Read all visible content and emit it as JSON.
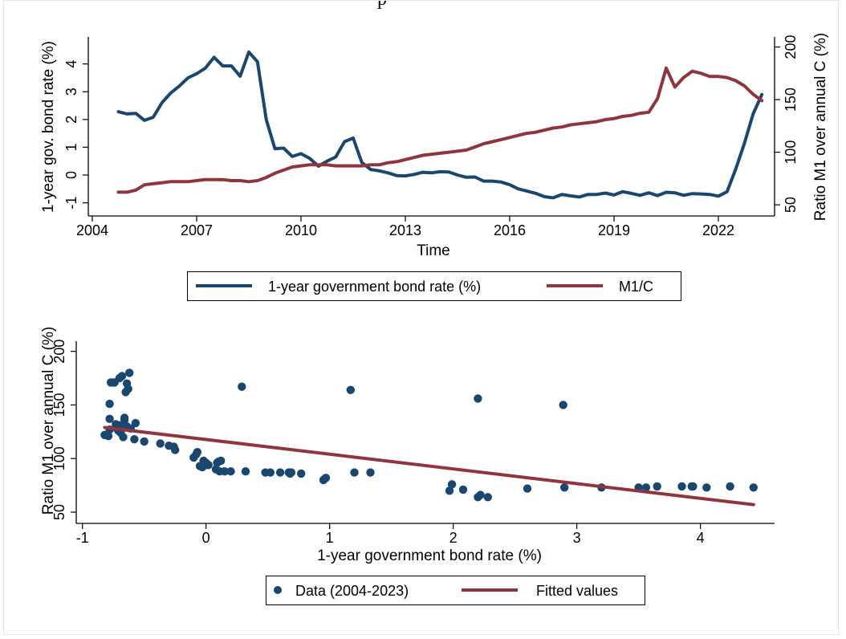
{
  "colors": {
    "bond": "#1a476f",
    "m1c": "#90353b",
    "axis": "#000000",
    "frame": "#e6e6e6"
  },
  "chart_data": [
    {
      "type": "line",
      "xlabel": "Time",
      "ylabel_left": "1-year gov. bond rate (%)",
      "ylabel_right": "Ratio M1 over annual C (%)",
      "x_ticks": [
        "2004",
        "2007",
        "2010",
        "2013",
        "2016",
        "2019",
        "2022"
      ],
      "y_left_ticks": [
        "-1",
        "0",
        "1",
        "2",
        "3",
        "4"
      ],
      "y_right_ticks": [
        "50",
        "100",
        "150",
        "200"
      ],
      "x_range": [
        2004,
        2023.5
      ],
      "y_left_range": [
        -1.3,
        4.8
      ],
      "y_right_range": [
        44,
        205
      ],
      "legend_position": "bottom",
      "legend": [
        "1-year government bond rate (%)",
        "M1/C"
      ],
      "series": [
        {
          "name": "1-year government bond rate (%)",
          "axis": "left",
          "x": [
            2004.75,
            2005.0,
            2005.25,
            2005.5,
            2005.75,
            2006.0,
            2006.25,
            2006.5,
            2006.75,
            2007.0,
            2007.25,
            2007.5,
            2007.75,
            2008.0,
            2008.25,
            2008.5,
            2008.75,
            2009.0,
            2009.25,
            2009.5,
            2009.75,
            2010.0,
            2010.25,
            2010.5,
            2010.75,
            2011.0,
            2011.25,
            2011.5,
            2011.75,
            2012.0,
            2012.25,
            2012.5,
            2012.75,
            2013.0,
            2013.25,
            2013.5,
            2013.75,
            2014.0,
            2014.25,
            2014.5,
            2014.75,
            2015.0,
            2015.25,
            2015.5,
            2015.75,
            2016.0,
            2016.25,
            2016.5,
            2016.75,
            2017.0,
            2017.25,
            2017.5,
            2017.75,
            2018.0,
            2018.25,
            2018.5,
            2018.75,
            2019.0,
            2019.25,
            2019.5,
            2019.75,
            2020.0,
            2020.25,
            2020.5,
            2020.75,
            2021.0,
            2021.25,
            2021.5,
            2021.75,
            2022.0,
            2022.25,
            2022.5,
            2022.75,
            2023.0,
            2023.25
          ],
          "values": [
            2.28,
            2.2,
            2.22,
            1.97,
            2.08,
            2.6,
            2.95,
            3.2,
            3.5,
            3.65,
            3.85,
            4.24,
            3.93,
            3.93,
            3.56,
            4.43,
            4.08,
            2.0,
            0.95,
            0.97,
            0.67,
            0.77,
            0.6,
            0.32,
            0.5,
            0.65,
            1.2,
            1.33,
            0.45,
            0.2,
            0.15,
            0.08,
            -0.02,
            -0.03,
            0.02,
            0.1,
            0.08,
            0.12,
            0.11,
            0.0,
            -0.08,
            -0.07,
            -0.22,
            -0.22,
            -0.25,
            -0.35,
            -0.5,
            -0.58,
            -0.66,
            -0.78,
            -0.82,
            -0.7,
            -0.75,
            -0.79,
            -0.7,
            -0.7,
            -0.65,
            -0.72,
            -0.6,
            -0.66,
            -0.73,
            -0.64,
            -0.74,
            -0.62,
            -0.64,
            -0.73,
            -0.67,
            -0.68,
            -0.7,
            -0.76,
            -0.6,
            0.22,
            1.15,
            2.2,
            2.9
          ]
        },
        {
          "name": "M1/C",
          "axis": "right",
          "x": [
            2004.75,
            2005.0,
            2005.25,
            2005.5,
            2005.75,
            2006.0,
            2006.25,
            2006.5,
            2006.75,
            2007.0,
            2007.25,
            2007.5,
            2007.75,
            2008.0,
            2008.25,
            2008.5,
            2008.75,
            2009.0,
            2009.25,
            2009.5,
            2009.75,
            2010.0,
            2010.25,
            2010.5,
            2010.75,
            2011.0,
            2011.25,
            2011.5,
            2011.75,
            2012.0,
            2012.25,
            2012.5,
            2012.75,
            2013.0,
            2013.25,
            2013.5,
            2013.75,
            2014.0,
            2014.25,
            2014.5,
            2014.75,
            2015.0,
            2015.25,
            2015.5,
            2015.75,
            2016.0,
            2016.25,
            2016.5,
            2016.75,
            2017.0,
            2017.25,
            2017.5,
            2017.75,
            2018.0,
            2018.25,
            2018.5,
            2018.75,
            2019.0,
            2019.25,
            2019.5,
            2019.75,
            2020.0,
            2020.25,
            2020.5,
            2020.75,
            2021.0,
            2021.25,
            2021.5,
            2021.75,
            2022.0,
            2022.25,
            2022.5,
            2022.75,
            2023.0,
            2023.25
          ],
          "values": [
            62,
            62,
            64,
            69,
            70,
            71,
            72,
            72,
            72,
            73,
            74,
            74,
            74,
            73,
            73,
            72,
            73,
            76,
            80,
            83,
            86,
            87,
            88,
            88,
            88,
            87,
            87,
            87,
            87,
            88,
            88,
            90,
            91,
            93,
            95,
            97,
            98,
            99,
            100,
            101,
            102,
            105,
            108,
            110,
            112,
            114,
            116,
            118,
            119,
            121,
            123,
            124,
            126,
            127,
            128,
            129,
            131,
            132,
            134,
            135,
            137,
            138,
            151,
            180,
            162,
            171,
            177,
            175,
            172,
            172,
            171,
            168,
            163,
            155,
            149
          ]
        }
      ]
    },
    {
      "type": "scatter",
      "xlabel": "1-year government bond rate (%)",
      "ylabel": "Ratio M1 over annual C (%)",
      "x_ticks": [
        "-1",
        "0",
        "1",
        "2",
        "3",
        "4"
      ],
      "y_ticks": [
        "50",
        "100",
        "150",
        "200"
      ],
      "x_range": [
        -1.05,
        4.6
      ],
      "y_range": [
        44,
        205
      ],
      "legend_position": "bottom",
      "legend": [
        "Data (2004-2023)",
        "Fitted values"
      ],
      "series": [
        {
          "name": "Data (2004-2023)",
          "points": [
            [
              -0.82,
              122
            ],
            [
              -0.8,
              122
            ],
            [
              -0.79,
              121
            ],
            [
              -0.78,
              127
            ],
            [
              -0.78,
              137
            ],
            [
              -0.78,
              151
            ],
            [
              -0.77,
              171
            ],
            [
              -0.75,
              171
            ],
            [
              -0.74,
              171
            ],
            [
              -0.73,
              132
            ],
            [
              -0.72,
              128
            ],
            [
              -0.71,
              126
            ],
            [
              -0.7,
              131
            ],
            [
              -0.7,
              175
            ],
            [
              -0.69,
              124
            ],
            [
              -0.68,
              177
            ],
            [
              -0.67,
              120
            ],
            [
              -0.66,
              138
            ],
            [
              -0.66,
              136
            ],
            [
              -0.65,
              162
            ],
            [
              -0.64,
              130
            ],
            [
              -0.64,
              170
            ],
            [
              -0.63,
              165
            ],
            [
              -0.62,
              180
            ],
            [
              -0.61,
              128
            ],
            [
              -0.58,
              118
            ],
            [
              -0.57,
              133
            ],
            [
              -0.5,
              116
            ],
            [
              -0.37,
              114
            ],
            [
              -0.3,
              112
            ],
            [
              -0.26,
              111
            ],
            [
              -0.25,
              108
            ],
            [
              -0.1,
              101
            ],
            [
              -0.08,
              104
            ],
            [
              -0.07,
              106
            ],
            [
              -0.05,
              93
            ],
            [
              -0.03,
              92
            ],
            [
              -0.02,
              98
            ],
            [
              0.0,
              96
            ],
            [
              0.01,
              94
            ],
            [
              0.02,
              94
            ],
            [
              0.08,
              90
            ],
            [
              0.09,
              96
            ],
            [
              0.1,
              97
            ],
            [
              0.11,
              88
            ],
            [
              0.12,
              98
            ],
            [
              0.15,
              88
            ],
            [
              0.2,
              88
            ],
            [
              0.29,
              167
            ],
            [
              0.32,
              88
            ],
            [
              0.48,
              87
            ],
            [
              0.52,
              87
            ],
            [
              0.6,
              87
            ],
            [
              0.67,
              87
            ],
            [
              0.68,
              86
            ],
            [
              0.69,
              87
            ],
            [
              0.77,
              86
            ],
            [
              0.95,
              80
            ],
            [
              0.96,
              81
            ],
            [
              0.97,
              82
            ],
            [
              1.17,
              164
            ],
            [
              1.2,
              87
            ],
            [
              1.33,
              87
            ],
            [
              1.97,
              70
            ],
            [
              1.99,
              76
            ],
            [
              2.08,
              71
            ],
            [
              2.2,
              156
            ],
            [
              2.2,
              64
            ],
            [
              2.22,
              66
            ],
            [
              2.28,
              64
            ],
            [
              2.6,
              72
            ],
            [
              2.89,
              150
            ],
            [
              2.9,
              73
            ],
            [
              3.2,
              73
            ],
            [
              3.5,
              73
            ],
            [
              3.56,
              73
            ],
            [
              3.65,
              74
            ],
            [
              3.85,
              74
            ],
            [
              3.93,
              74
            ],
            [
              3.94,
              74
            ],
            [
              4.05,
              73
            ],
            [
              4.24,
              74
            ],
            [
              4.43,
              73
            ]
          ]
        },
        {
          "name": "Fitted values",
          "line": [
            [
              -0.82,
              129
            ],
            [
              4.43,
              57
            ]
          ]
        }
      ]
    }
  ]
}
